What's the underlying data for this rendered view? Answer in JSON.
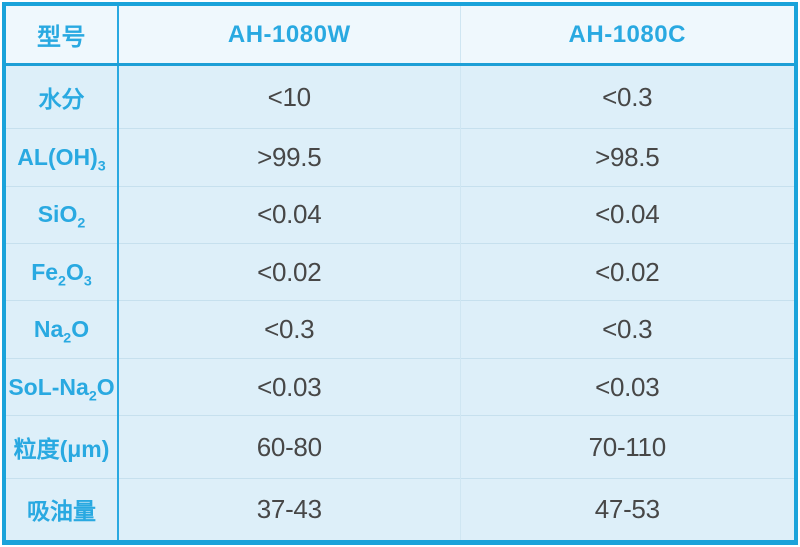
{
  "chart_data": {
    "type": "table",
    "title": "",
    "columns": [
      "型号",
      "AH-1080W",
      "AH-1080C"
    ],
    "rows": [
      {
        "property": "水分",
        "AH-1080W": "<10",
        "AH-1080C": "<0.3"
      },
      {
        "property": "AL(OH)3",
        "AH-1080W": ">99.5",
        "AH-1080C": ">98.5"
      },
      {
        "property": "SiO2",
        "AH-1080W": "<0.04",
        "AH-1080C": "<0.04"
      },
      {
        "property": "Fe2O3",
        "AH-1080W": "<0.02",
        "AH-1080C": "<0.02"
      },
      {
        "property": "Na2O",
        "AH-1080W": "<0.3",
        "AH-1080C": "<0.3"
      },
      {
        "property": "SoL-Na2O",
        "AH-1080W": "<0.03",
        "AH-1080C": "<0.03"
      },
      {
        "property": "粒度(μm)",
        "AH-1080W": "60-80",
        "AH-1080C": "70-110"
      },
      {
        "property": "吸油量",
        "AH-1080W": "37-43",
        "AH-1080C": "47-53"
      }
    ],
    "layout": {
      "grid": "on",
      "header_row": true,
      "label_column": true
    }
  },
  "table": {
    "header": {
      "col1": "型号",
      "col2": "AH-1080W",
      "col3": "AH-1080C"
    },
    "rows": [
      {
        "label": [
          {
            "t": "水分"
          }
        ],
        "values": [
          "<10",
          "<0.3"
        ]
      },
      {
        "label": [
          {
            "t": "AL(OH)"
          },
          {
            "sub": "3"
          }
        ],
        "values": [
          ">99.5",
          ">98.5"
        ]
      },
      {
        "label": [
          {
            "t": "SiO"
          },
          {
            "sub": "2"
          }
        ],
        "values": [
          "<0.04",
          "<0.04"
        ]
      },
      {
        "label": [
          {
            "t": "Fe"
          },
          {
            "sub": "2"
          },
          {
            "t": "O"
          },
          {
            "sub": "3"
          }
        ],
        "values": [
          "<0.02",
          "<0.02"
        ]
      },
      {
        "label": [
          {
            "t": "Na"
          },
          {
            "sub": "2"
          },
          {
            "t": "O"
          }
        ],
        "values": [
          "<0.3",
          "<0.3"
        ]
      },
      {
        "label": [
          {
            "t": "SoL-Na"
          },
          {
            "sub": "2"
          },
          {
            "t": "O"
          }
        ],
        "values": [
          "<0.03",
          "<0.03"
        ]
      },
      {
        "label": [
          {
            "t": "粒度(μm)"
          }
        ],
        "values": [
          "60-80",
          "70-110"
        ]
      },
      {
        "label": [
          {
            "t": "吸油量"
          }
        ],
        "values": [
          "37-43",
          "47-53"
        ]
      }
    ]
  },
  "colors": {
    "accent_cyan": "#29a9e1",
    "border_cyan": "#1aa3da",
    "header_underline": "#1d9fd6",
    "header_bg": "#eff8fd",
    "row_bg": "#ddeff9",
    "light_separator": "#c6e0ee",
    "value_text": "#474747"
  }
}
